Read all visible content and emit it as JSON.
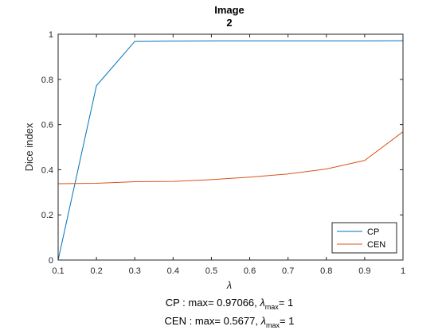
{
  "chart_data": {
    "type": "line",
    "title_lines": [
      "Image",
      "2"
    ],
    "xlabel": "λ",
    "ylabel": "Dice index",
    "xlim": [
      0.1,
      1
    ],
    "ylim": [
      0,
      1
    ],
    "x_ticks": [
      0.1,
      0.2,
      0.3,
      0.4,
      0.5,
      0.6,
      0.7,
      0.8,
      0.9,
      1
    ],
    "x_tick_labels": [
      "0.1",
      "0.2",
      "0.3",
      "0.4",
      "0.5",
      "0.6",
      "0.7",
      "0.8",
      "0.9",
      "1"
    ],
    "y_ticks": [
      0,
      0.2,
      0.4,
      0.6,
      0.8,
      1
    ],
    "y_tick_labels": [
      "0",
      "0.2",
      "0.4",
      "0.6",
      "0.8",
      "1"
    ],
    "grid": false,
    "legend_position": "bottom-right",
    "x": [
      0.1,
      0.2,
      0.3,
      0.4,
      0.5,
      0.6,
      0.7,
      0.8,
      0.9,
      1
    ],
    "series": [
      {
        "name": "CP",
        "color": "#0072BD",
        "values": [
          0.0,
          0.772,
          0.968,
          0.969,
          0.97,
          0.97,
          0.97,
          0.97,
          0.97,
          0.971
        ]
      },
      {
        "name": "CEN",
        "color": "#D95319",
        "values": [
          0.338,
          0.34,
          0.347,
          0.348,
          0.356,
          0.367,
          0.381,
          0.403,
          0.441,
          0.568
        ]
      }
    ],
    "annotations": [
      {
        "prefix": "CP : max= 0.97066,  ",
        "sym": "λ",
        "sub": "max",
        "suffix": "= 1"
      },
      {
        "prefix": "CEN : max= 0.5677,  ",
        "sym": "λ",
        "sub": "max",
        "suffix": "= 1"
      }
    ]
  }
}
